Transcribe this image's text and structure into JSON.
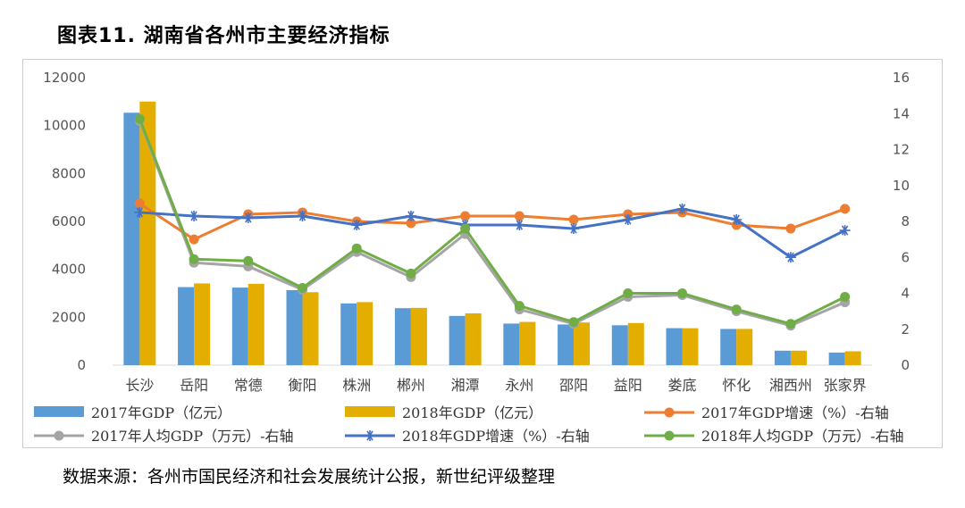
{
  "header": {
    "title": "图表11.   湖南省各州市主要经济指标"
  },
  "footer": {
    "source": "数据来源：各州市国民经济和社会发展统计公报，新世纪评级整理"
  },
  "chart_data": {
    "type": "bar",
    "title": "湖南省各州市主要经济指标",
    "categories": [
      "长沙",
      "岳阳",
      "常德",
      "衡阳",
      "株洲",
      "郴州",
      "湘潭",
      "永州",
      "邵阳",
      "益阳",
      "娄底",
      "怀化",
      "湘西州",
      "张家界"
    ],
    "left_axis": {
      "ylim": [
        0,
        12000
      ],
      "ticks": [
        0,
        2000,
        4000,
        6000,
        8000,
        10000,
        12000
      ]
    },
    "right_axis": {
      "ylim": [
        0,
        16
      ],
      "ticks": [
        0,
        2,
        4,
        6,
        8,
        10,
        12,
        14,
        16
      ]
    },
    "series": [
      {
        "name": "2017年GDP（亿元）",
        "type": "bar",
        "axis": "left",
        "color": "#5B9BD5",
        "values": [
          10536,
          3258,
          3238,
          3133,
          2578,
          2378,
          2056,
          1736,
          1698,
          1665,
          1544,
          1512,
          604,
          526
        ]
      },
      {
        "name": "2018年GDP（亿元）",
        "type": "bar",
        "axis": "left",
        "color": "#E4AE00",
        "values": [
          11003,
          3411,
          3395,
          3046,
          2631,
          2391,
          2162,
          1805,
          1782,
          1758,
          1541,
          1513,
          605,
          578
        ]
      },
      {
        "name": "2017年GDP增速（%）-右轴",
        "type": "line",
        "axis": "right",
        "color": "#ED7D31",
        "marker": "circle",
        "values": [
          9.0,
          7.0,
          8.4,
          8.5,
          8.0,
          7.9,
          8.3,
          8.3,
          8.1,
          8.4,
          8.5,
          7.8,
          7.6,
          8.7
        ]
      },
      {
        "name": "2017年人均GDP（万元）-右轴",
        "type": "line",
        "axis": "right",
        "color": "#A5A5A5",
        "marker": "circle",
        "values": [
          13.6,
          5.7,
          5.5,
          4.2,
          6.3,
          4.9,
          7.3,
          3.1,
          2.3,
          3.8,
          3.9,
          3.0,
          2.2,
          3.5
        ]
      },
      {
        "name": "2018年GDP增速（%）-右轴",
        "type": "line",
        "axis": "right",
        "color": "#4472C4",
        "marker": "star",
        "values": [
          8.5,
          8.3,
          8.2,
          8.3,
          7.8,
          8.3,
          7.8,
          7.8,
          7.6,
          8.1,
          8.7,
          8.1,
          6.0,
          7.5
        ]
      },
      {
        "name": "2018年人均GDP（万元）-右轴",
        "type": "line",
        "axis": "right",
        "color": "#70AD47",
        "marker": "circle",
        "values": [
          13.7,
          5.9,
          5.8,
          4.3,
          6.5,
          5.1,
          7.6,
          3.3,
          2.4,
          4.0,
          4.0,
          3.1,
          2.3,
          3.8
        ]
      }
    ],
    "legend_position": "bottom"
  }
}
